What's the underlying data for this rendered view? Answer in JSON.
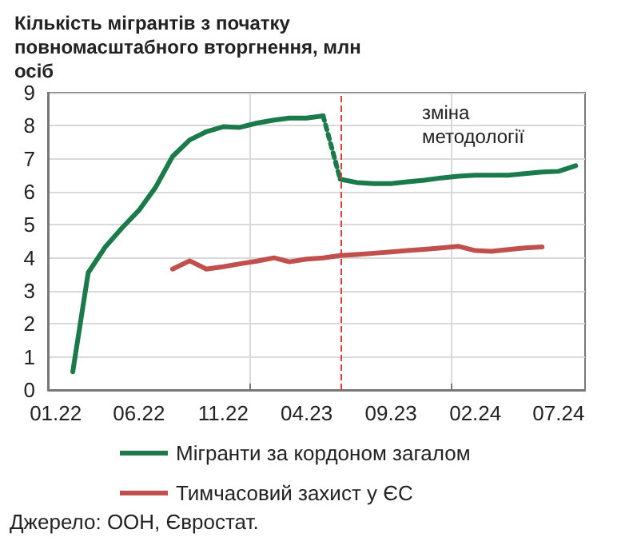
{
  "chart_data": {
    "type": "line",
    "title": "Кількість мігрантів з початку повномасштабного вторгнення, млн осіб",
    "xlim": [
      "2022-01-01",
      "2024-09-01"
    ],
    "xticks": [
      {
        "value": "2022-01-15",
        "label": "01.22"
      },
      {
        "value": "2022-06-15",
        "label": "06.22"
      },
      {
        "value": "2022-11-15",
        "label": "11.22"
      },
      {
        "value": "2023-01-01",
        "label": null
      },
      {
        "value": "2023-04-15",
        "label": "04.23"
      },
      {
        "value": "2023-09-15",
        "label": "09.23"
      },
      {
        "value": "2024-01-01",
        "label": null
      },
      {
        "value": "2024-02-15",
        "label": "02.24"
      },
      {
        "value": "2024-07-15",
        "label": "07.24"
      }
    ],
    "ylim": [
      0,
      9
    ],
    "yticks": [
      0,
      1,
      2,
      3,
      4,
      5,
      6,
      7,
      8,
      9
    ],
    "grid": true,
    "legend": "bottom",
    "marker": "none",
    "line_style": "solid",
    "series": [
      {
        "name": "Мігранти за кордоном загалом",
        "color": "#1a7a4a",
        "x": [
          "2022-02-15",
          "2022-03-15",
          "2022-04-15",
          "2022-05-15",
          "2022-06-15",
          "2022-07-15",
          "2022-08-15",
          "2022-09-15",
          "2022-10-15",
          "2022-11-15",
          "2022-12-15",
          "2023-01-15",
          "2023-02-15",
          "2023-03-15",
          "2023-04-15",
          "2023-05-15"
        ],
        "values": [
          0.55,
          3.55,
          4.33,
          4.9,
          5.44,
          6.13,
          7.07,
          7.57,
          7.82,
          7.97,
          7.95,
          8.08,
          8.17,
          8.23,
          8.23,
          8.3
        ]
      },
      {
        "color": "#1a7a4a",
        "line_style": "dotted",
        "x": [
          "2023-05-15",
          "2023-06-15"
        ],
        "values": [
          8.3,
          6.38
        ]
      },
      {
        "color": "#1a7a4a",
        "x": [
          "2023-06-15",
          "2023-07-15",
          "2023-08-15",
          "2023-09-15",
          "2023-10-15",
          "2023-11-15",
          "2023-12-15",
          "2024-01-15",
          "2024-02-15",
          "2024-03-15",
          "2024-04-15",
          "2024-05-15",
          "2024-06-15",
          "2024-07-15",
          "2024-08-15"
        ],
        "values": [
          6.38,
          6.28,
          6.25,
          6.25,
          6.3,
          6.35,
          6.42,
          6.47,
          6.5,
          6.5,
          6.5,
          6.55,
          6.6,
          6.62,
          6.79
        ]
      },
      {
        "name": "Тимчасовий захист у ЄС",
        "color": "#c0504d",
        "x": [
          "2022-08-15",
          "2022-09-15",
          "2022-10-15",
          "2022-11-15",
          "2022-12-15",
          "2023-01-15",
          "2023-02-15",
          "2023-03-15",
          "2023-04-15",
          "2023-05-15",
          "2023-06-15",
          "2023-07-15",
          "2023-08-15",
          "2023-09-15",
          "2023-10-15",
          "2023-11-15",
          "2023-12-15",
          "2024-01-15",
          "2024-02-15",
          "2024-03-15",
          "2024-04-15",
          "2024-05-15",
          "2024-06-15"
        ],
        "values": [
          3.66,
          3.91,
          3.66,
          3.73,
          3.82,
          3.9,
          4.0,
          3.88,
          3.96,
          4.0,
          4.07,
          4.1,
          4.14,
          4.18,
          4.22,
          4.26,
          4.3,
          4.35,
          4.22,
          4.2,
          4.25,
          4.3,
          4.33
        ]
      }
    ],
    "ref_lines": [
      {
        "axis": "x",
        "value": "2023-06-15",
        "color": "#e03c3c",
        "line_style": "dashed"
      }
    ],
    "annotations": [
      "зміна методології",
      "Джерело: ООН, Євростат."
    ]
  }
}
